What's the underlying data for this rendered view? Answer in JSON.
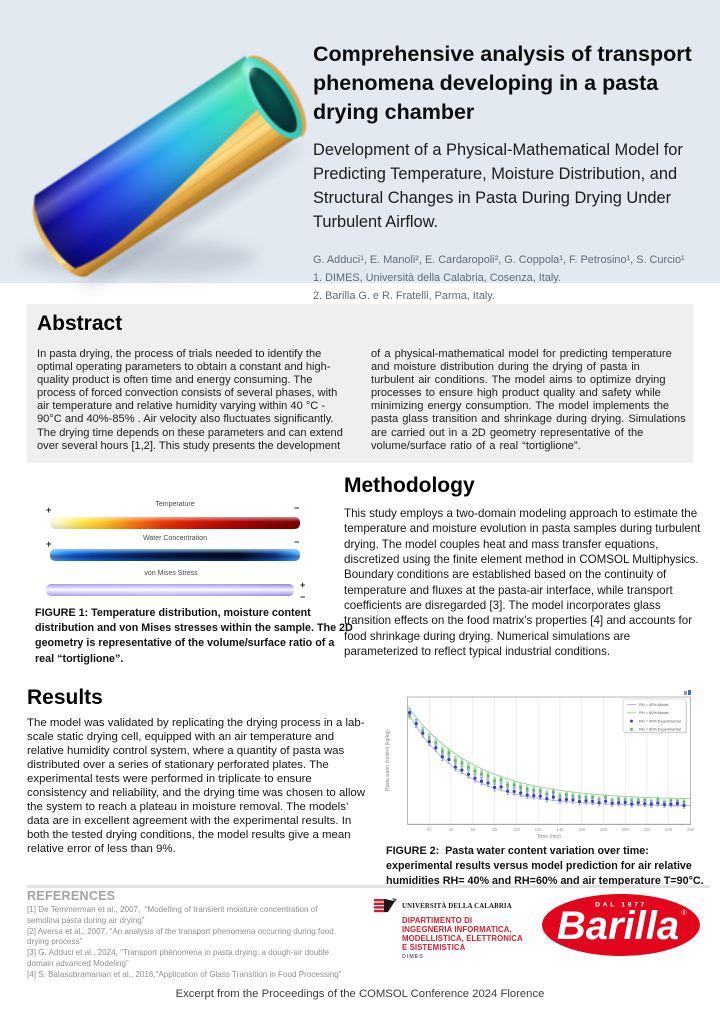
{
  "header": {
    "title": "Comprehensive analysis of transport phenomena developing in a pasta drying chamber",
    "subtitle": "Development of a Physical-Mathematical Model for Predicting Temperature, Moisture Distribution, and Structural Changes in Pasta During Drying Under Turbulent Airflow.",
    "authors": "G. Adduci¹, E. Manoli², E. Cardaropoli², G. Coppola¹, F. Petrosino¹, S. Curcio¹",
    "affiliations": [
      "1. DIMES, Università della Calabria, Cosenza, Italy.",
      "2. Barilla G. e R. Fratelli, Parma, Italy."
    ]
  },
  "abstract": {
    "heading": "Abstract",
    "col1": "In pasta drying, the process of trials needed to identify the optimal operating parameters to obtain a constant and high-quality product is often time and energy consuming. The process of forced convection consists of several phases, with air temperature and relative humidity varying within 40 °C - 90°C and 40%-85% . Air velocity also fluctuates significantly. The drying time depends on these parameters and can extend over several hours [1,2]. This study presents the development",
    "col2": "of a physical-mathematical model for predicting temperature and moisture distribution during the drying of pasta in turbulent air conditions. The model aims to optimize drying processes to ensure high product quality and safety while minimizing energy consumption. The model implements the pasta glass transition and shrinkage during drying. Simulations are carried out in a 2D geometry representative of the volume/surface ratio of a real “tortiglione”."
  },
  "figure1": {
    "bars": [
      {
        "label": "Temperature",
        "left_sign": "+",
        "right_sign": "−"
      },
      {
        "label": "Water Concentration",
        "left_sign": "+",
        "right_sign": "−"
      },
      {
        "label": "von Mises Stress",
        "right_top_sign": "+",
        "right_bottom_sign": "−"
      }
    ],
    "caption": "FIGURE 1: Temperature distribution, moisture content distribution and von Mises stresses within the sample. The 2D geometry is representative of the volume/surface ratio of a real “tortiglione”."
  },
  "methodology": {
    "heading": "Methodology",
    "body": "This study employs a two-domain modeling approach to estimate the temperature and moisture evolution in pasta samples during turbulent drying. The model couples heat and mass transfer equations, discretized using the finite element method in COMSOL Multiphysics. Boundary conditions are established based on the continuity of temperature and fluxes at the pasta-air interface, while transport coefficients are disregarded [3]. The model incorporates glass transition effects on the food matrix's properties [4] and accounts for food shrinkage during drying. Numerical simulations are parameterized to reflect typical industrial conditions."
  },
  "results": {
    "heading": "Results",
    "body": "The model was validated by replicating the drying process in a lab-scale static drying cell, equipped with an air temperature and relative humidity control system, where a quantity of pasta was distributed over a series of stationary perforated plates. The experimental tests were performed in triplicate to ensure consistency and reliability, and the drying time was chosen to allow the system to reach a plateau in moisture removal. The models’ data are in excellent agreement with the experimental results. In both the tested drying conditions, the model results give a mean relative error of less than 9%."
  },
  "figure2": {
    "caption": "FIGURE 2:  Pasta water content variation over time: experimental results versus model prediction for air relative humidities RH= 40% and RH=60% and air temperature T=90°C."
  },
  "chart_data": {
    "type": "line",
    "xlabel": "Time (min)",
    "ylabel": "Pasta water content (kg/kg)",
    "xlim": [
      0,
      260
    ],
    "ylim": [
      0,
      0.5
    ],
    "x_ticks": [
      20,
      40,
      60,
      80,
      100,
      120,
      140,
      160,
      180,
      200,
      220,
      240,
      260
    ],
    "grid": "vertical",
    "legend_position": "top-right",
    "series": [
      {
        "name": "RH = 40% Model",
        "style": "line",
        "color": "#a9b1e8",
        "x": [
          0,
          5,
          10,
          15,
          20,
          25,
          30,
          35,
          40,
          45,
          50,
          55,
          60,
          65,
          70,
          75,
          80,
          85,
          90,
          95,
          100,
          105,
          110,
          115,
          120,
          125,
          130,
          135,
          140,
          145,
          150,
          155,
          160,
          165,
          170,
          175,
          180,
          185,
          190,
          195,
          200,
          205,
          210,
          215,
          220,
          225,
          230,
          235,
          240,
          245,
          250,
          255,
          260
        ],
        "y": [
          0.442,
          0.4054,
          0.3724,
          0.3427,
          0.3159,
          0.2918,
          0.27,
          0.2505,
          0.2328,
          0.2169,
          0.2026,
          0.1896,
          0.178,
          0.1675,
          0.1581,
          0.1496,
          0.1419,
          0.135,
          0.1287,
          0.1231,
          0.1181,
          0.1135,
          0.1094,
          0.1057,
          0.1024,
          0.0994,
          0.0967,
          0.0942,
          0.092,
          0.09,
          0.0883,
          0.0866,
          0.0852,
          0.0839,
          0.0827,
          0.0817,
          0.0807,
          0.0798,
          0.0791,
          0.0784,
          0.0777,
          0.0772,
          0.0767,
          0.0762,
          0.0758,
          0.0754,
          0.0751,
          0.0748,
          0.0745,
          0.0742,
          0.074,
          0.0738,
          0.0736
        ]
      },
      {
        "name": "RH = 60% Model",
        "style": "line",
        "color": "#93d096",
        "x": [
          0,
          5,
          10,
          15,
          20,
          25,
          30,
          35,
          40,
          45,
          50,
          55,
          60,
          65,
          70,
          75,
          80,
          85,
          90,
          95,
          100,
          105,
          110,
          115,
          120,
          125,
          130,
          135,
          140,
          145,
          150,
          155,
          160,
          165,
          170,
          175,
          180,
          185,
          190,
          195,
          200,
          205,
          210,
          215,
          220,
          225,
          230,
          235,
          240,
          245,
          250,
          255,
          260
        ],
        "y": [
          0.465,
          0.4363,
          0.4099,
          0.3855,
          0.363,
          0.3422,
          0.3231,
          0.3054,
          0.2891,
          0.2741,
          0.2602,
          0.2474,
          0.2356,
          0.2247,
          0.2146,
          0.2054,
          0.1968,
          0.1889,
          0.1817,
          0.1749,
          0.1687,
          0.163,
          0.1578,
          0.1529,
          0.1484,
          0.1443,
          0.1405,
          0.1369,
          0.1337,
          0.1307,
          0.1279,
          0.1254,
          0.123,
          0.1208,
          0.1188,
          0.117,
          0.1153,
          0.1137,
          0.1123,
          0.1109,
          0.1097,
          0.1086,
          0.1075,
          0.1065,
          0.1056,
          0.1048,
          0.1041,
          0.1034,
          0.1027,
          0.1021,
          0.1016,
          0.1011,
          0.1006
        ]
      },
      {
        "name": "RH = 40% Experimental",
        "style": "scatter",
        "marker": "dot",
        "color": "#393fc0",
        "whisker": "#9aa0e2",
        "x": [
          2,
          8,
          14,
          20,
          26,
          32,
          38,
          44,
          50,
          56,
          62,
          68,
          74,
          80,
          86,
          92,
          98,
          104,
          110,
          116,
          122,
          128,
          134,
          140,
          146,
          152,
          158,
          164,
          170,
          176,
          182,
          188,
          194,
          200,
          206,
          212,
          218,
          224,
          230,
          236,
          242,
          248,
          254
        ],
        "y": [
          0.4386,
          0.3953,
          0.3576,
          0.3244,
          0.3005,
          0.2656,
          0.2549,
          0.2247,
          0.2133,
          0.1966,
          0.1814,
          0.1699,
          0.1627,
          0.1452,
          0.1475,
          0.1305,
          0.1294,
          0.1233,
          0.1155,
          0.1131,
          0.1107,
          0.1009,
          0.1069,
          0.0957,
          0.0976,
          0.0961,
          0.0901,
          0.0924,
          0.0902,
          0.0848,
          0.0907,
          0.0828,
          0.0849,
          0.086,
          0.0795,
          0.0848,
          0.0813,
          0.079,
          0.0836,
          0.0779,
          0.0792,
          0.0821,
          0.0744
        ],
        "err": [
          0.016,
          0.0158,
          0.0157,
          0.0156,
          0.0155,
          0.0154,
          0.0152,
          0.0151,
          0.015,
          0.0149,
          0.0148,
          0.0146,
          0.0145,
          0.0144,
          0.0143,
          0.0142,
          0.014,
          0.0139,
          0.0138,
          0.0137,
          0.0136,
          0.0134,
          0.0133,
          0.0132,
          0.0131,
          0.013,
          0.0128,
          0.0127,
          0.0126,
          0.0125,
          0.0124,
          0.0122,
          0.0121,
          0.012,
          0.0119,
          0.0118,
          0.0116,
          0.0115,
          0.0114,
          0.0113,
          0.0112,
          0.011,
          0.0109
        ]
      },
      {
        "name": "RH = 60% Experimental",
        "style": "scatter",
        "marker": "bar",
        "color": "#5cb763",
        "whisker": "#a8dfaa",
        "x": [
          2,
          8,
          14,
          20,
          26,
          32,
          38,
          44,
          50,
          56,
          62,
          68,
          74,
          80,
          86,
          92,
          98,
          104,
          110,
          116,
          122,
          128,
          134,
          140,
          146,
          152,
          158,
          164,
          170,
          176,
          182,
          188,
          194,
          200,
          206,
          212,
          218,
          224,
          230,
          236,
          242,
          248,
          254
        ],
        "y": [
          0.4309,
          0.3974,
          0.3657,
          0.3393,
          0.3192,
          0.2872,
          0.2802,
          0.25,
          0.2409,
          0.224,
          0.2092,
          0.1974,
          0.1904,
          0.1707,
          0.1747,
          0.154,
          0.1547,
          0.1454,
          0.1382,
          0.1335,
          0.1319,
          0.1185,
          0.1271,
          0.1111,
          0.1161,
          0.1106,
          0.1065,
          0.1057,
          0.1058,
          0.0963,
          0.1061,
          0.0929,
          0.0994,
          0.0961,
          0.0928,
          0.0948,
          0.0944,
          0.0879,
          0.0973,
          0.0862,
          0.0927,
          0.0911,
          0.0873
        ],
        "err": [
          0.0199,
          0.0198,
          0.0196,
          0.0194,
          0.0192,
          0.019,
          0.0189,
          0.0187,
          0.0185,
          0.0183,
          0.0181,
          0.018,
          0.0178,
          0.0176,
          0.0174,
          0.0172,
          0.0171,
          0.0169,
          0.0167,
          0.0165,
          0.0163,
          0.0162,
          0.016,
          0.0158,
          0.0156,
          0.0154,
          0.0153,
          0.0151,
          0.0149,
          0.0147,
          0.0145,
          0.0144,
          0.0142,
          0.014,
          0.0138,
          0.0136,
          0.0135,
          0.0133,
          0.0131,
          0.013,
          0.013,
          0.013,
          0.013
        ]
      }
    ]
  },
  "references": {
    "heading": "REFERENCES",
    "items": [
      "[1] De Temmerman et al., 2007,  “Modelling of transient moisture concentration of semolina pasta during air drying”",
      "[2] Aversa et al., 2007, “An analysis of the transport phenomena occurring during food drying process”",
      "[3] G. Adduci et al., 2024, “Transport phenomena in pasta drying: a dough-air double domain advanced Modeling”",
      "[4] S. Balasubramanian et al., 2016,“Application of Glass Transition in Food Processing”"
    ]
  },
  "logos": {
    "unical": {
      "university": "UNIVERSITÀ DELLA CALABRIA",
      "department_lines": [
        "DIPARTIMENTO DI",
        "INGEGNERIA INFORMATICA,",
        "MODELLISTICA, ELETTRONICA",
        "E SISTEMISTICA"
      ],
      "acronym": "DIMES"
    },
    "barilla": {
      "tagline": "DAL 1877",
      "brand": "Barilla",
      "registered": "®"
    }
  },
  "footer": "Excerpt from the Proceedings of the COMSOL Conference 2024 Florence",
  "colors": {
    "header_bg": "#e3e9f1",
    "abstract_bg": "#efefef",
    "unical_red": "#cf1f2e",
    "barilla_red": "#e3051b",
    "reference_gray": "#8f8f8f"
  }
}
